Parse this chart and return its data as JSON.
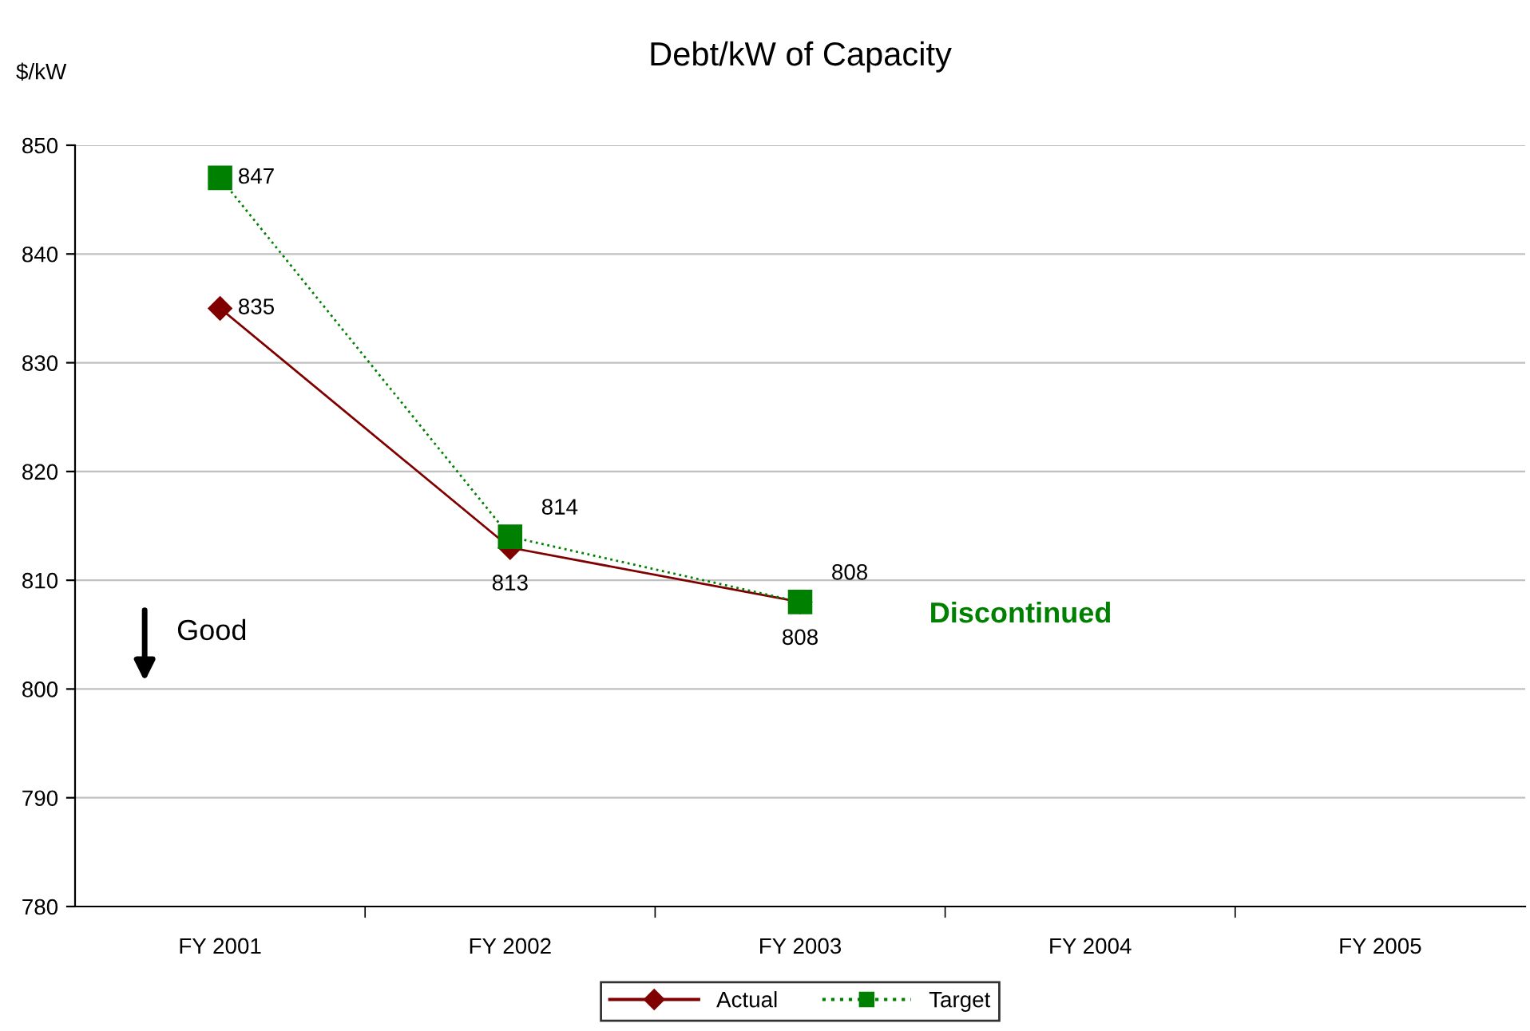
{
  "chart_data": {
    "type": "line",
    "title": "Debt/kW of Capacity",
    "ylabel": "$/kW",
    "categories": [
      "FY 2001",
      "FY 2002",
      "FY 2003",
      "FY 2004",
      "FY 2005"
    ],
    "series": [
      {
        "name": "Actual",
        "color": "#800000",
        "values": [
          835,
          813,
          808,
          null,
          null
        ],
        "marker": "diamond",
        "line_style": "solid"
      },
      {
        "name": "Target",
        "color": "#008000",
        "values": [
          847,
          814,
          808,
          null,
          null
        ],
        "marker": "square",
        "line_style": "dotted"
      }
    ],
    "ylim": [
      780,
      850
    ],
    "yticks": [
      780,
      790,
      800,
      810,
      820,
      830,
      840,
      850
    ],
    "grid": "y",
    "legend": "bottom",
    "data_labels": true,
    "annotations": [
      "Good",
      "Discontinued"
    ]
  }
}
